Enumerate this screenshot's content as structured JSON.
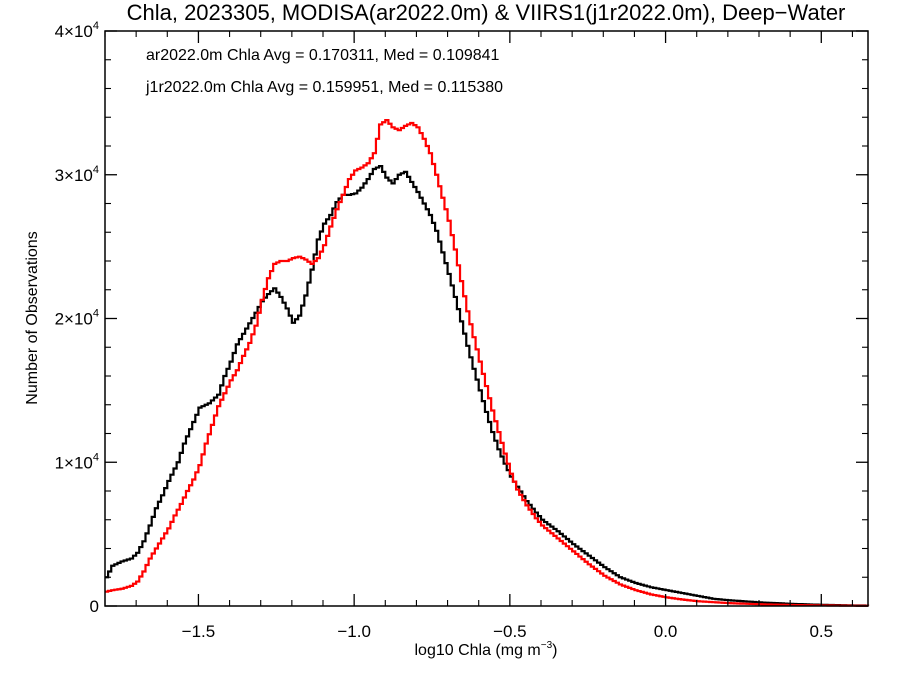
{
  "chart_data": {
    "type": "line",
    "title": "Chla, 2023305, MODISA(ar2022.0m) & VIIRS1(j1r2022.0m), Deep−Water",
    "xlabel": "log10 Chla (mg m",
    "xlabel_superscript": "−3",
    "xlabel_suffix": ")",
    "ylabel": "Number of Observations",
    "xlim": [
      -1.8,
      0.65
    ],
    "ylim": [
      0,
      40000
    ],
    "x_ticks": [
      {
        "value": -1.5,
        "label": "−1.5"
      },
      {
        "value": -1.0,
        "label": "−1.0"
      },
      {
        "value": -0.5,
        "label": "−0.5"
      },
      {
        "value": 0.0,
        "label": "0.0"
      },
      {
        "value": 0.5,
        "label": "0.5"
      }
    ],
    "y_ticks": [
      {
        "value": 0,
        "base": "0",
        "exp": ""
      },
      {
        "value": 10000,
        "base": "1×10",
        "exp": "4"
      },
      {
        "value": 20000,
        "base": "2×10",
        "exp": "4"
      },
      {
        "value": 30000,
        "base": "3×10",
        "exp": "4"
      },
      {
        "value": 40000,
        "base": "4×10",
        "exp": "4"
      }
    ],
    "annotations": [
      {
        "text": "ar2022.0m Chla Avg = 0.170311, Med = 0.109841",
        "color": "#000000"
      },
      {
        "text": "j1r2022.0m Chla Avg = 0.159951, Med = 0.115380",
        "color": "#ff0000"
      }
    ],
    "grid": false,
    "series": [
      {
        "color": "#000000",
        "points": [
          [
            -1.8,
            2000
          ],
          [
            -1.78,
            2800
          ],
          [
            -1.75,
            3100
          ],
          [
            -1.72,
            3300
          ],
          [
            -1.7,
            3700
          ],
          [
            -1.68,
            4500
          ],
          [
            -1.66,
            5600
          ],
          [
            -1.64,
            6800
          ],
          [
            -1.62,
            7700
          ],
          [
            -1.6,
            8700
          ],
          [
            -1.57,
            10000
          ],
          [
            -1.55,
            11300
          ],
          [
            -1.52,
            12800
          ],
          [
            -1.5,
            13800
          ],
          [
            -1.47,
            14100
          ],
          [
            -1.44,
            14700
          ],
          [
            -1.42,
            16000
          ],
          [
            -1.4,
            17000
          ],
          [
            -1.38,
            18200
          ],
          [
            -1.35,
            19300
          ],
          [
            -1.32,
            20400
          ],
          [
            -1.3,
            21200
          ],
          [
            -1.28,
            21700
          ],
          [
            -1.26,
            22100
          ],
          [
            -1.24,
            21500
          ],
          [
            -1.22,
            20700
          ],
          [
            -1.2,
            19700
          ],
          [
            -1.18,
            20200
          ],
          [
            -1.16,
            21600
          ],
          [
            -1.14,
            23400
          ],
          [
            -1.12,
            25500
          ],
          [
            -1.1,
            26600
          ],
          [
            -1.08,
            27200
          ],
          [
            -1.06,
            28100
          ],
          [
            -1.04,
            28600
          ],
          [
            -1.02,
            28600
          ],
          [
            -1.0,
            28700
          ],
          [
            -0.98,
            29100
          ],
          [
            -0.96,
            29700
          ],
          [
            -0.94,
            30400
          ],
          [
            -0.92,
            30600
          ],
          [
            -0.9,
            29800
          ],
          [
            -0.88,
            29400
          ],
          [
            -0.86,
            30000
          ],
          [
            -0.84,
            30200
          ],
          [
            -0.82,
            29500
          ],
          [
            -0.8,
            28800
          ],
          [
            -0.78,
            28000
          ],
          [
            -0.76,
            27200
          ],
          [
            -0.74,
            26100
          ],
          [
            -0.72,
            24600
          ],
          [
            -0.7,
            23100
          ],
          [
            -0.68,
            21500
          ],
          [
            -0.66,
            19800
          ],
          [
            -0.64,
            18100
          ],
          [
            -0.62,
            16500
          ],
          [
            -0.6,
            15000
          ],
          [
            -0.58,
            13500
          ],
          [
            -0.56,
            12100
          ],
          [
            -0.54,
            10900
          ],
          [
            -0.52,
            9900
          ],
          [
            -0.5,
            9000
          ],
          [
            -0.48,
            8300
          ],
          [
            -0.45,
            7300
          ],
          [
            -0.42,
            6500
          ],
          [
            -0.4,
            6000
          ],
          [
            -0.35,
            5200
          ],
          [
            -0.3,
            4300
          ],
          [
            -0.25,
            3500
          ],
          [
            -0.2,
            2700
          ],
          [
            -0.15,
            2000
          ],
          [
            -0.1,
            1600
          ],
          [
            -0.05,
            1300
          ],
          [
            0.0,
            1100
          ],
          [
            0.05,
            900
          ],
          [
            0.1,
            700
          ],
          [
            0.15,
            500
          ],
          [
            0.2,
            400
          ],
          [
            0.3,
            250
          ],
          [
            0.4,
            150
          ],
          [
            0.5,
            80
          ],
          [
            0.6,
            40
          ],
          [
            0.65,
            30
          ]
        ]
      },
      {
        "color": "#ff0000",
        "points": [
          [
            -1.8,
            1000
          ],
          [
            -1.78,
            1100
          ],
          [
            -1.75,
            1200
          ],
          [
            -1.72,
            1400
          ],
          [
            -1.7,
            1700
          ],
          [
            -1.68,
            2400
          ],
          [
            -1.66,
            3300
          ],
          [
            -1.64,
            4000
          ],
          [
            -1.62,
            4700
          ],
          [
            -1.6,
            5400
          ],
          [
            -1.58,
            6300
          ],
          [
            -1.56,
            7100
          ],
          [
            -1.54,
            8000
          ],
          [
            -1.52,
            8800
          ],
          [
            -1.5,
            9800
          ],
          [
            -1.48,
            11300
          ],
          [
            -1.46,
            12600
          ],
          [
            -1.44,
            13900
          ],
          [
            -1.42,
            14800
          ],
          [
            -1.4,
            15700
          ],
          [
            -1.38,
            16400
          ],
          [
            -1.36,
            17400
          ],
          [
            -1.34,
            18300
          ],
          [
            -1.32,
            19500
          ],
          [
            -1.3,
            21300
          ],
          [
            -1.28,
            22800
          ],
          [
            -1.26,
            23800
          ],
          [
            -1.24,
            24000
          ],
          [
            -1.22,
            24000
          ],
          [
            -1.2,
            24200
          ],
          [
            -1.18,
            24300
          ],
          [
            -1.16,
            24100
          ],
          [
            -1.14,
            23800
          ],
          [
            -1.12,
            24200
          ],
          [
            -1.1,
            25100
          ],
          [
            -1.08,
            26400
          ],
          [
            -1.06,
            27600
          ],
          [
            -1.04,
            28600
          ],
          [
            -1.02,
            29700
          ],
          [
            -1.0,
            30300
          ],
          [
            -0.98,
            30500
          ],
          [
            -0.96,
            30800
          ],
          [
            -0.94,
            31500
          ],
          [
            -0.92,
            33500
          ],
          [
            -0.9,
            33800
          ],
          [
            -0.88,
            33300
          ],
          [
            -0.86,
            33100
          ],
          [
            -0.84,
            33400
          ],
          [
            -0.82,
            33600
          ],
          [
            -0.8,
            33300
          ],
          [
            -0.78,
            32500
          ],
          [
            -0.76,
            31500
          ],
          [
            -0.74,
            30000
          ],
          [
            -0.72,
            28400
          ],
          [
            -0.7,
            26800
          ],
          [
            -0.68,
            24800
          ],
          [
            -0.66,
            22600
          ],
          [
            -0.64,
            20500
          ],
          [
            -0.62,
            18700
          ],
          [
            -0.6,
            17000
          ],
          [
            -0.58,
            15300
          ],
          [
            -0.56,
            13600
          ],
          [
            -0.54,
            12100
          ],
          [
            -0.52,
            10600
          ],
          [
            -0.5,
            9200
          ],
          [
            -0.48,
            8100
          ],
          [
            -0.45,
            7000
          ],
          [
            -0.42,
            6100
          ],
          [
            -0.4,
            5600
          ],
          [
            -0.35,
            4700
          ],
          [
            -0.3,
            3800
          ],
          [
            -0.25,
            2900
          ],
          [
            -0.2,
            2100
          ],
          [
            -0.15,
            1500
          ],
          [
            -0.1,
            1100
          ],
          [
            -0.05,
            800
          ],
          [
            0.0,
            600
          ],
          [
            0.05,
            450
          ],
          [
            0.1,
            330
          ],
          [
            0.2,
            200
          ],
          [
            0.3,
            120
          ],
          [
            0.4,
            70
          ],
          [
            0.5,
            40
          ],
          [
            0.6,
            20
          ],
          [
            0.65,
            15
          ]
        ]
      }
    ]
  }
}
